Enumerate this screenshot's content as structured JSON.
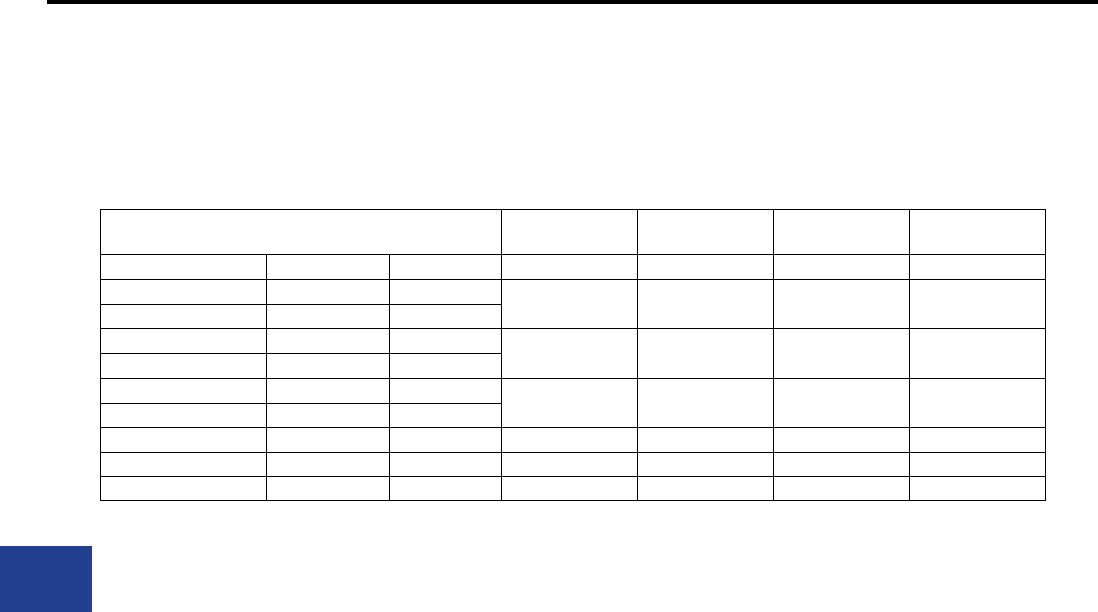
{
  "colors": {
    "rule": "#000000",
    "accent_block": "#233f8f",
    "table_border": "#000000"
  },
  "table": {
    "header": [],
    "rows": []
  }
}
